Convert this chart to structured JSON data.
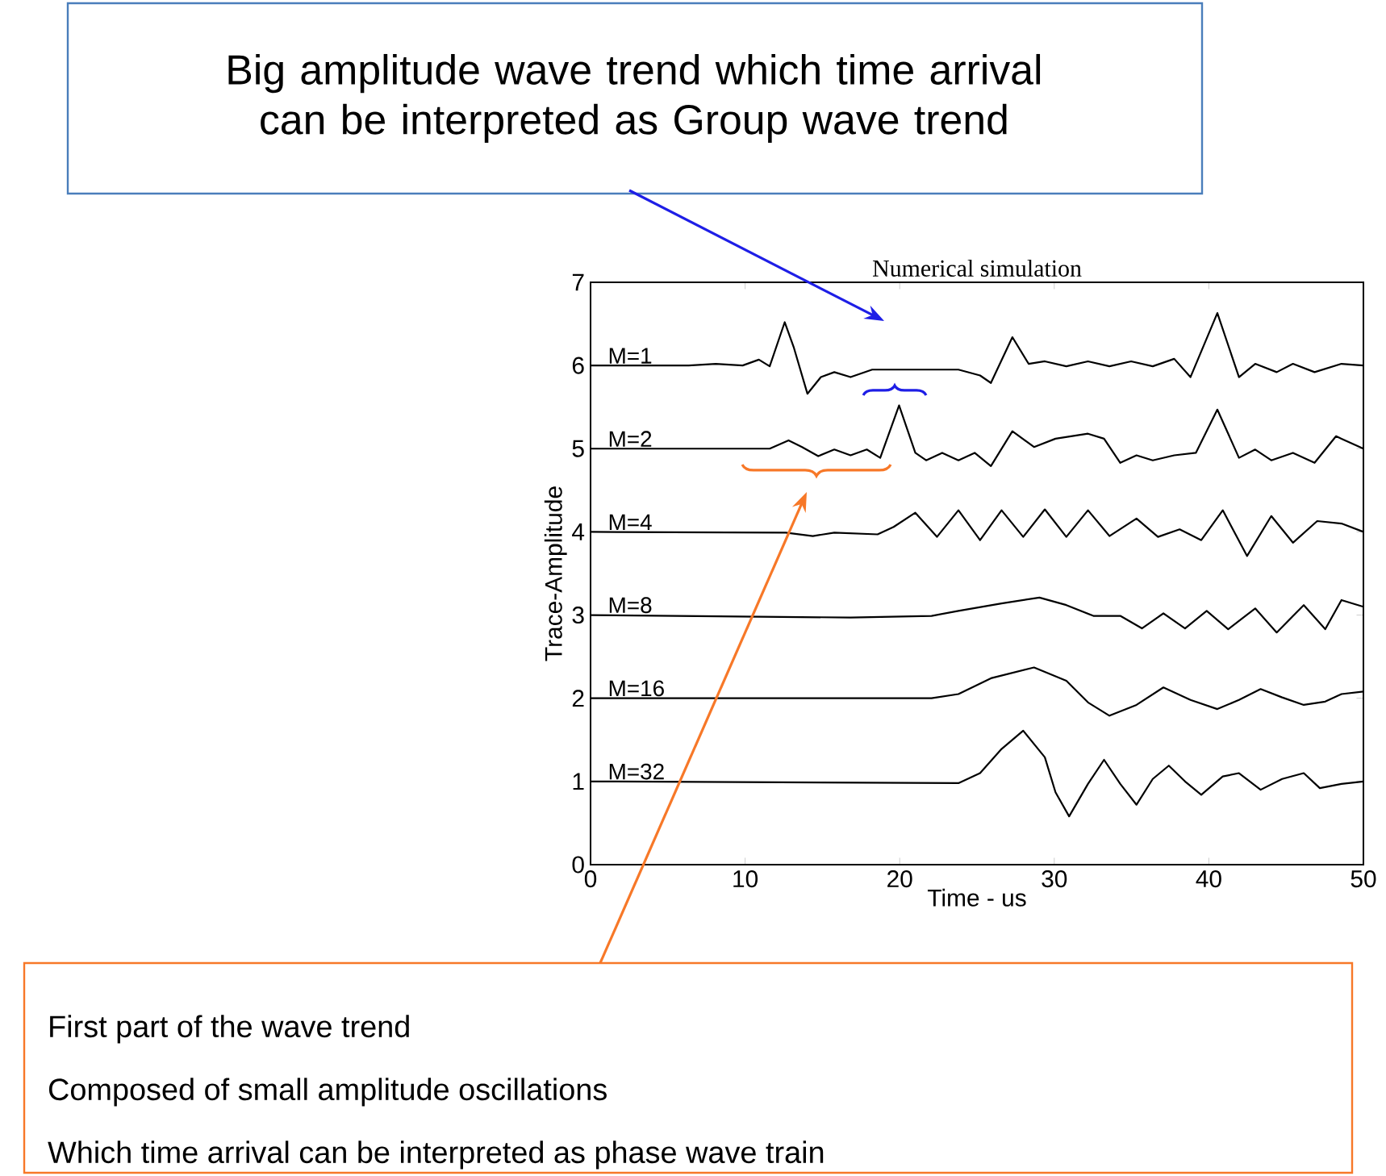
{
  "chart_data": {
    "type": "line",
    "title": "Numerical  simulation",
    "xlabel": "Time - us",
    "ylabel": "Trace-Amplitude",
    "xlim": [
      0,
      50
    ],
    "ylim": [
      0,
      7
    ],
    "xticks": [
      0,
      10,
      20,
      30,
      40,
      50
    ],
    "yticks": [
      0,
      1,
      2,
      3,
      4,
      5,
      6,
      7
    ],
    "marker": "none",
    "line_style": "solid",
    "annotations": [
      "Big amplitude wave trend which time arrival can be interpreted as Group wave trend",
      "First part of the wave trend",
      "Composed of small amplitude oscillations",
      "Which time arrival can be interpreted as phase wave train"
    ],
    "series": [
      {
        "name": "M=1",
        "color": "#000000",
        "x": [
          0,
          6.35,
          8.1,
          9.84,
          10.89,
          11.59,
          12.56,
          13.16,
          14.03,
          14.9,
          15.77,
          16.82,
          18.22,
          20.31,
          23.8,
          25.2,
          25.9,
          27.29,
          28.34,
          29.39,
          30.78,
          32.18,
          33.57,
          34.97,
          36.37,
          37.76,
          38.81,
          40.55,
          41.95,
          43.0,
          44.39,
          45.44,
          46.84,
          48.58,
          50
        ],
        "values": [
          6.0,
          6.0,
          6.02,
          6.0,
          6.07,
          5.99,
          6.52,
          6.21,
          5.66,
          5.86,
          5.92,
          5.86,
          5.95,
          5.95,
          5.95,
          5.88,
          5.79,
          6.34,
          6.02,
          6.05,
          5.99,
          6.05,
          5.99,
          6.05,
          5.99,
          6.08,
          5.86,
          6.63,
          5.86,
          6.02,
          5.92,
          6.02,
          5.92,
          6.02,
          6.0
        ]
      },
      {
        "name": "M=2",
        "color": "#000000",
        "x": [
          0,
          11.59,
          12.81,
          13.68,
          14.73,
          15.77,
          16.82,
          17.87,
          18.74,
          19.96,
          21.01,
          21.71,
          22.75,
          23.8,
          24.85,
          25.9,
          27.29,
          28.69,
          30.08,
          32.18,
          33.22,
          34.27,
          35.32,
          36.37,
          37.76,
          39.16,
          40.55,
          41.95,
          43.0,
          44.04,
          45.44,
          46.84,
          48.23,
          48.58,
          50
        ],
        "values": [
          5.0,
          5.0,
          5.1,
          5.02,
          4.91,
          4.99,
          4.92,
          4.99,
          4.89,
          5.52,
          4.95,
          4.86,
          4.95,
          4.86,
          4.95,
          4.79,
          5.21,
          5.02,
          5.12,
          5.18,
          5.12,
          4.83,
          4.92,
          4.86,
          4.92,
          4.95,
          5.47,
          4.89,
          4.99,
          4.86,
          4.95,
          4.83,
          5.15,
          5.12,
          5.0
        ]
      },
      {
        "name": "M=4",
        "color": "#000000",
        "x": [
          0,
          12.63,
          14.38,
          15.77,
          18.57,
          19.61,
          21.01,
          22.41,
          23.8,
          25.2,
          26.59,
          27.99,
          29.39,
          30.78,
          32.18,
          33.57,
          35.32,
          36.71,
          38.11,
          39.51,
          40.9,
          42.47,
          44.04,
          45.44,
          47.01,
          48.58,
          50
        ],
        "values": [
          4.0,
          3.99,
          3.95,
          3.99,
          3.97,
          4.06,
          4.23,
          3.94,
          4.26,
          3.9,
          4.26,
          3.94,
          4.27,
          3.94,
          4.26,
          3.95,
          4.16,
          3.94,
          4.03,
          3.9,
          4.26,
          3.71,
          4.19,
          3.87,
          4.13,
          4.1,
          4.0
        ]
      },
      {
        "name": "M=8",
        "color": "#000000",
        "x": [
          0,
          16.82,
          22.06,
          23.8,
          26.59,
          29.04,
          30.78,
          32.53,
          34.27,
          35.67,
          37.06,
          38.46,
          39.86,
          41.25,
          43.0,
          44.39,
          46.14,
          47.53,
          48.58,
          50
        ],
        "values": [
          3.0,
          2.97,
          2.99,
          3.05,
          3.14,
          3.21,
          3.12,
          2.99,
          2.99,
          2.84,
          3.02,
          2.84,
          3.05,
          2.83,
          3.08,
          2.79,
          3.12,
          2.83,
          3.18,
          3.1
        ]
      },
      {
        "name": "M=16",
        "color": "#000000",
        "x": [
          0,
          22.06,
          23.8,
          25.9,
          28.69,
          30.78,
          32.18,
          33.57,
          35.32,
          37.06,
          38.81,
          40.55,
          41.95,
          43.35,
          44.74,
          46.14,
          47.53,
          48.58,
          50
        ],
        "values": [
          2.0,
          2.0,
          2.05,
          2.24,
          2.37,
          2.21,
          1.95,
          1.79,
          1.92,
          2.13,
          1.98,
          1.87,
          1.98,
          2.11,
          2.01,
          1.92,
          1.96,
          2.05,
          2.08
        ]
      },
      {
        "name": "M=32",
        "color": "#000000",
        "x": [
          0,
          23.8,
          25.2,
          26.59,
          27.99,
          29.39,
          30.08,
          30.96,
          32.18,
          33.22,
          34.27,
          35.32,
          36.37,
          37.41,
          38.46,
          39.51,
          40.9,
          41.95,
          43.35,
          44.74,
          46.14,
          47.18,
          48.58,
          50
        ],
        "values": [
          1.0,
          0.98,
          1.1,
          1.39,
          1.61,
          1.29,
          0.87,
          0.58,
          0.97,
          1.26,
          0.97,
          0.72,
          1.03,
          1.19,
          1.0,
          0.84,
          1.06,
          1.1,
          0.9,
          1.03,
          1.1,
          0.92,
          0.97,
          1.0
        ]
      }
    ]
  }
}
